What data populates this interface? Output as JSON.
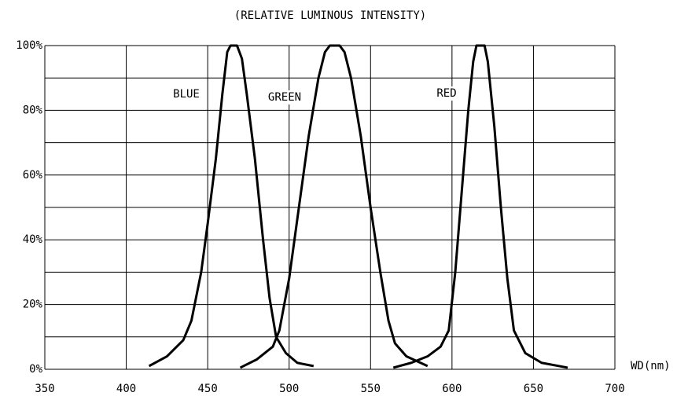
{
  "chart_data": {
    "type": "line",
    "title": "(RELATIVE LUMINOUS INTENSITY)",
    "x_label": "WD(nm)",
    "xlim": [
      350,
      700
    ],
    "xticks": [
      350,
      400,
      450,
      500,
      550,
      600,
      650,
      700
    ],
    "ylim": [
      0,
      100
    ],
    "yticks": [
      {
        "value": 0,
        "label": "0%"
      },
      {
        "value": 20,
        "label": "20%"
      },
      {
        "value": 40,
        "label": "40%"
      },
      {
        "value": 60,
        "label": "60%"
      },
      {
        "value": 80,
        "label": "80%"
      },
      {
        "value": 100,
        "label": "100%"
      }
    ],
    "minor_yticks": [
      10,
      30,
      50,
      70,
      90
    ],
    "grid": true,
    "series": [
      {
        "name": "BLUE",
        "color": "#000000",
        "x": [
          414,
          425,
          435,
          440,
          446,
          450,
          455,
          459,
          462,
          464,
          468,
          471,
          474,
          479,
          484,
          488,
          492,
          498,
          505,
          515
        ],
        "values": [
          1,
          4,
          9,
          15,
          30,
          45,
          65,
          85,
          98,
          100,
          100,
          96,
          85,
          65,
          40,
          22,
          10,
          5,
          2,
          1
        ]
      },
      {
        "name": "GREEN",
        "color": "#000000",
        "x": [
          470,
          480,
          490,
          494,
          500,
          506,
          512,
          518,
          522,
          525,
          531,
          534,
          538,
          544,
          550,
          556,
          561,
          565,
          572,
          585
        ],
        "values": [
          0.5,
          3,
          7,
          12,
          28,
          50,
          72,
          90,
          98,
          100,
          100,
          98,
          90,
          72,
          50,
          30,
          15,
          8,
          4,
          1
        ]
      },
      {
        "name": "RED",
        "color": "#000000",
        "x": [
          564,
          575,
          585,
          593,
          598,
          602,
          606,
          610,
          613,
          615,
          620,
          622,
          626,
          630,
          634,
          638,
          645,
          655,
          671
        ],
        "values": [
          0.5,
          2,
          4,
          7,
          12,
          30,
          55,
          80,
          95,
          100,
          100,
          95,
          75,
          50,
          28,
          12,
          5,
          2,
          0.5
        ]
      }
    ]
  }
}
